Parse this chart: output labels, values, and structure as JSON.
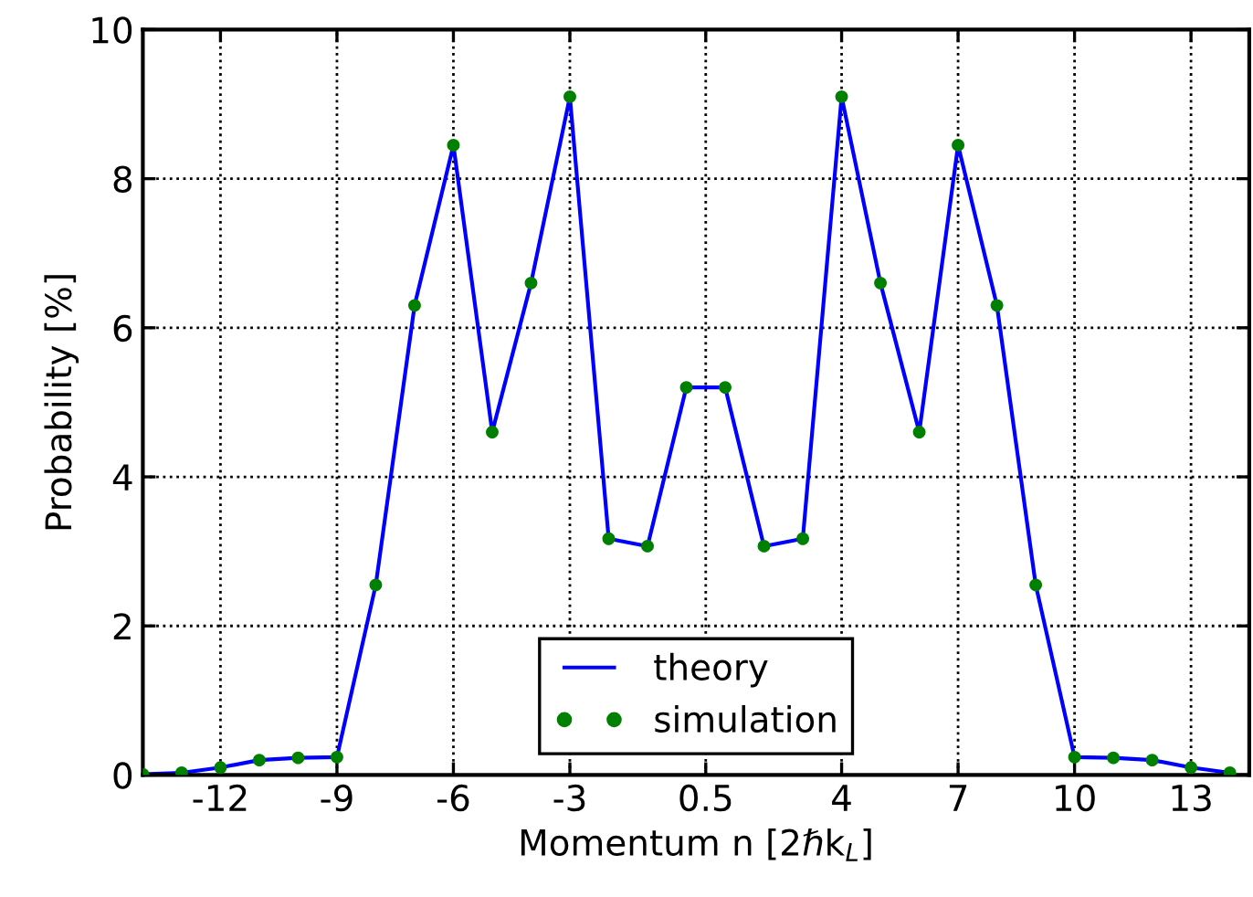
{
  "chart_data": {
    "type": "line",
    "xlabel": "Momentum n [2ℏk$_{L}$]",
    "ylabel": "Probability [%]",
    "xlim": [
      -14,
      14.5
    ],
    "ylim": [
      0,
      10
    ],
    "xticks": [
      -12,
      -9,
      -6,
      -3,
      0.5,
      4,
      7,
      10,
      13
    ],
    "yticks": [
      0,
      2,
      4,
      6,
      8,
      10
    ],
    "grid": true,
    "legend": "bottom",
    "series": [
      {
        "name": "theory",
        "color": "#0000ff",
        "marker": "none",
        "line_style": "solid",
        "x": [
          -14,
          -13,
          -12,
          -11,
          -10,
          -9,
          -8,
          -7,
          -6,
          -5,
          -4,
          -3,
          -2,
          -1,
          0,
          1,
          2,
          3,
          4,
          5,
          6,
          7,
          8,
          9,
          10,
          11,
          12,
          13,
          14
        ],
        "values": [
          0.01,
          0.03,
          0.1,
          0.2,
          0.23,
          0.24,
          2.55,
          6.3,
          8.45,
          4.6,
          6.6,
          9.1,
          3.17,
          3.07,
          5.2,
          5.2,
          3.07,
          3.17,
          9.1,
          6.6,
          4.6,
          8.45,
          6.3,
          2.55,
          0.24,
          0.23,
          0.2,
          0.1,
          0.03
        ]
      },
      {
        "name": "simulation",
        "type": "scatter",
        "color": "#008000",
        "marker": "circle",
        "x": [
          -14,
          -13,
          -12,
          -11,
          -10,
          -9,
          -8,
          -7,
          -6,
          -5,
          -4,
          -3,
          -2,
          -1,
          0,
          1,
          2,
          3,
          4,
          5,
          6,
          7,
          8,
          9,
          10,
          11,
          12,
          13,
          14
        ],
        "values": [
          0.01,
          0.03,
          0.1,
          0.2,
          0.23,
          0.24,
          2.55,
          6.3,
          8.45,
          4.6,
          6.6,
          9.1,
          3.17,
          3.07,
          5.2,
          5.2,
          3.07,
          3.17,
          9.1,
          6.6,
          4.6,
          8.45,
          6.3,
          2.55,
          0.24,
          0.23,
          0.2,
          0.1,
          0.03
        ]
      }
    ]
  }
}
